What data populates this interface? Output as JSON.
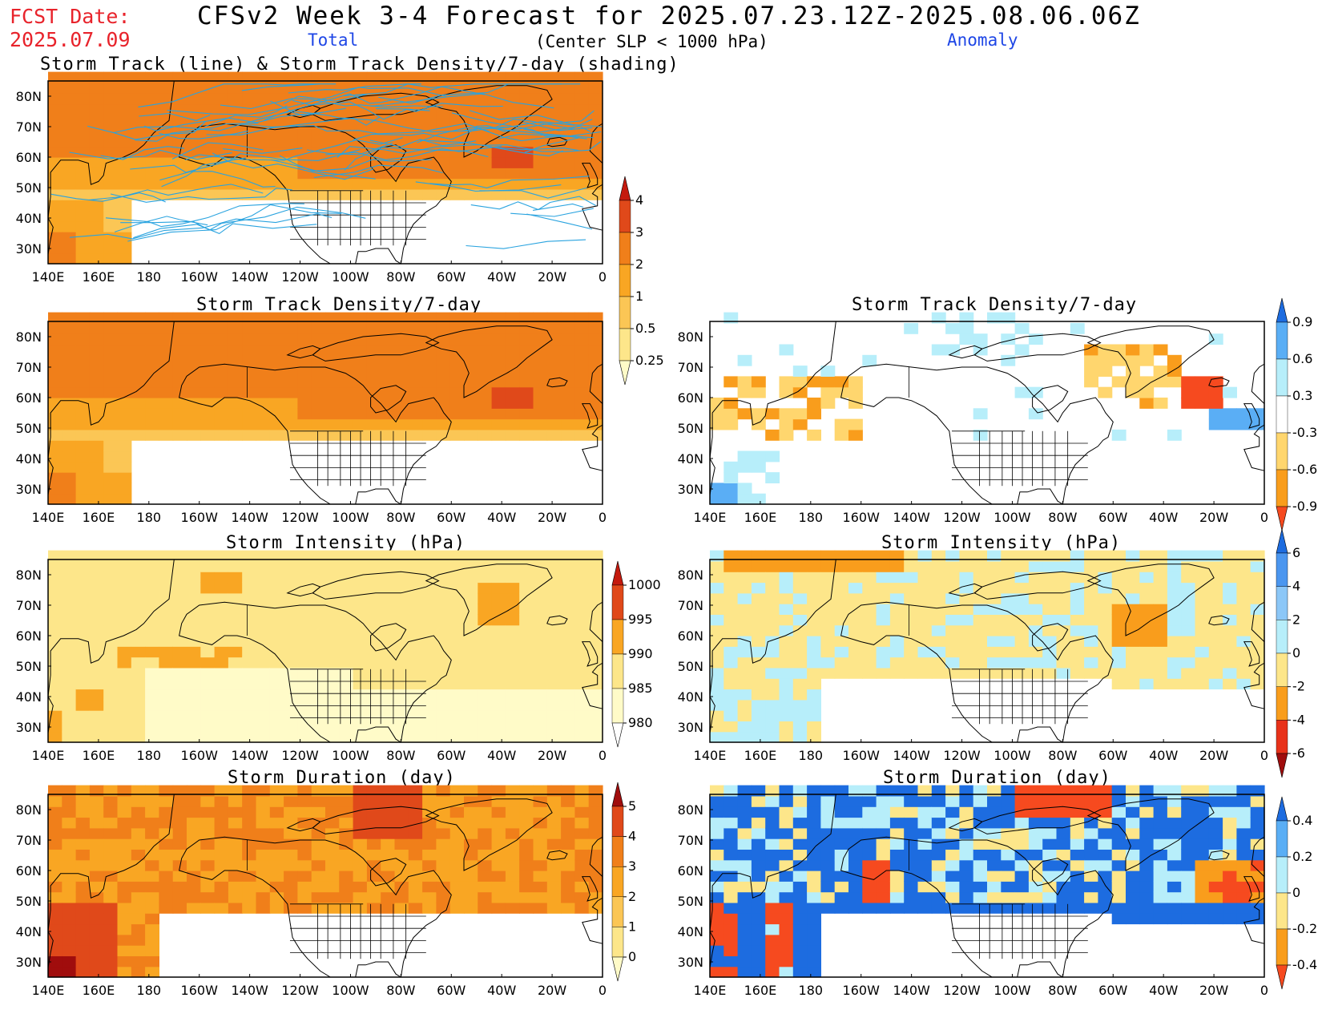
{
  "header": {
    "fcst_label": "FCST Date:",
    "fcst_date": "2025.07.09",
    "title": "CFSv2 Week 3-4 Forecast for 2025.07.23.12Z-2025.08.06.06Z",
    "total_label": "Total",
    "criterion": "(Center SLP < 1000 hPa)",
    "anomaly_label": "Anomaly"
  },
  "axes": {
    "x_ticks": [
      "140E",
      "160E",
      "180",
      "160W",
      "140W",
      "120W",
      "100W",
      "80W",
      "60W",
      "40W",
      "20W",
      "0"
    ],
    "y_ticks": [
      "80N",
      "70N",
      "60N",
      "50N",
      "40N",
      "30N"
    ]
  },
  "panels": {
    "p1": {
      "title": "Storm Track (line) & Storm Track Density/7-day (shading)"
    },
    "p2": {
      "title": "Storm Track Density/7-day"
    },
    "p3": {
      "title": "Storm Track Density/7-day"
    },
    "p4": {
      "title": "Storm Intensity (hPa)"
    },
    "p5": {
      "title": "Storm Intensity (hPa)"
    },
    "p6": {
      "title": "Storm Duration (day)"
    },
    "p7": {
      "title": "Storm Duration (day)"
    }
  },
  "colorbars": {
    "density_total": {
      "labels": [
        "4",
        "3",
        "2",
        "1",
        "0.5",
        "0.25"
      ],
      "colors": [
        "#fffbc8",
        "#fde68a",
        "#fbc655",
        "#f9a623",
        "#f07f1a",
        "#e0491a",
        "#c41a0e"
      ]
    },
    "density_anom": {
      "labels": [
        "0.9",
        "0.6",
        "0.3",
        "-0.3",
        "-0.6",
        "-0.9"
      ],
      "colors": [
        "#f64a1f",
        "#f99d1c",
        "#ffd66e",
        "#ffffff",
        "#b7eefa",
        "#5aaef5",
        "#1d6ce0"
      ]
    },
    "intensity_total": {
      "labels": [
        "1000",
        "995",
        "990",
        "985",
        "980"
      ],
      "colors": [
        "#ffffff",
        "#fffbc8",
        "#fde68a",
        "#f9a623",
        "#e0491a",
        "#c41a0e"
      ]
    },
    "intensity_anom": {
      "labels": [
        "6",
        "4",
        "2",
        "0",
        "-2",
        "-4",
        "-6"
      ],
      "colors": [
        "#a00d0d",
        "#e8321a",
        "#f99d1c",
        "#fde68a",
        "#b7eefa",
        "#8cc7f7",
        "#4b96ef",
        "#1d6ce0"
      ]
    },
    "duration_total": {
      "labels": [
        "5",
        "4",
        "3",
        "2",
        "1",
        "0"
      ],
      "colors": [
        "#fffbc8",
        "#fde68a",
        "#fbc655",
        "#f9a623",
        "#f07f1a",
        "#e0491a",
        "#a00d0d"
      ]
    },
    "duration_anom": {
      "labels": [
        "0.4",
        "0.2",
        "0",
        "-0.2",
        "-0.4"
      ],
      "colors": [
        "#f64a1f",
        "#f99d1c",
        "#fde68a",
        "#b7eefa",
        "#5aaef5",
        "#1d6ce0"
      ]
    }
  },
  "map": {
    "lon_range": [
      140,
      360
    ],
    "lat_range": [
      25,
      85
    ],
    "land_outline_color": "#000000",
    "track_color": "#29a3df"
  }
}
